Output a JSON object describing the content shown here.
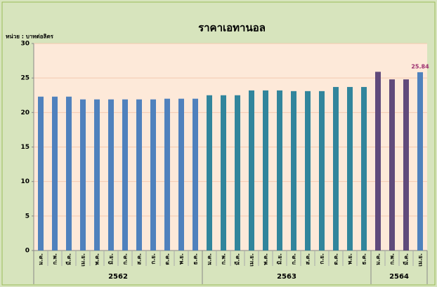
{
  "chart_data": {
    "type": "bar",
    "title": "ราคาเอทานอล",
    "unit_label": "หน่วย : บาทต่อลิตร",
    "ylim": [
      0,
      30
    ],
    "yticks": [
      0,
      5,
      10,
      15,
      20,
      25,
      30
    ],
    "grid": true,
    "groups": [
      {
        "label": "2562",
        "categories": [
          "ม.ค.",
          "ก.พ.",
          "มี.ค.",
          "เม.ย.",
          "พ.ค.",
          "มิ.ย.",
          "ก.ค.",
          "ส.ค.",
          "ก.ย.",
          "ต.ค.",
          "พ.ย.",
          "ธ.ค."
        ],
        "values": [
          22.3,
          22.3,
          22.3,
          21.9,
          21.9,
          21.9,
          21.9,
          21.9,
          21.9,
          22.0,
          22.0,
          22.0
        ],
        "colors": [
          "#4f81bd",
          "#4f81bd",
          "#4f81bd",
          "#4f81bd",
          "#4f81bd",
          "#4f81bd",
          "#4f81bd",
          "#4f81bd",
          "#4f81bd",
          "#4f81bd",
          "#4f81bd",
          "#4f81bd"
        ]
      },
      {
        "label": "2563",
        "categories": [
          "ม.ค.",
          "ก.พ.",
          "มี.ค.",
          "เม.ย.",
          "พ.ค.",
          "มิ.ย.",
          "ก.ค.",
          "ส.ค.",
          "ก.ย.",
          "ต.ค.",
          "พ.ย.",
          "ธ.ค."
        ],
        "values": [
          22.5,
          22.5,
          22.5,
          23.2,
          23.2,
          23.2,
          23.1,
          23.1,
          23.1,
          23.7,
          23.7,
          23.7
        ],
        "colors": [
          "#31859c",
          "#31859c",
          "#31859c",
          "#31859c",
          "#31859c",
          "#31859c",
          "#31859c",
          "#31859c",
          "#31859c",
          "#31859c",
          "#31859c",
          "#31859c"
        ]
      },
      {
        "label": "2564",
        "categories": [
          "ม.ค.",
          "ก.พ.",
          "มี.ค.",
          "เม.ย."
        ],
        "values": [
          25.9,
          24.8,
          24.8,
          25.84
        ],
        "colors": [
          "#604a7b",
          "#604a7b",
          "#604a7b",
          "#4f81bd"
        ],
        "value_labels": [
          null,
          null,
          null,
          "25.84"
        ]
      }
    ]
  }
}
